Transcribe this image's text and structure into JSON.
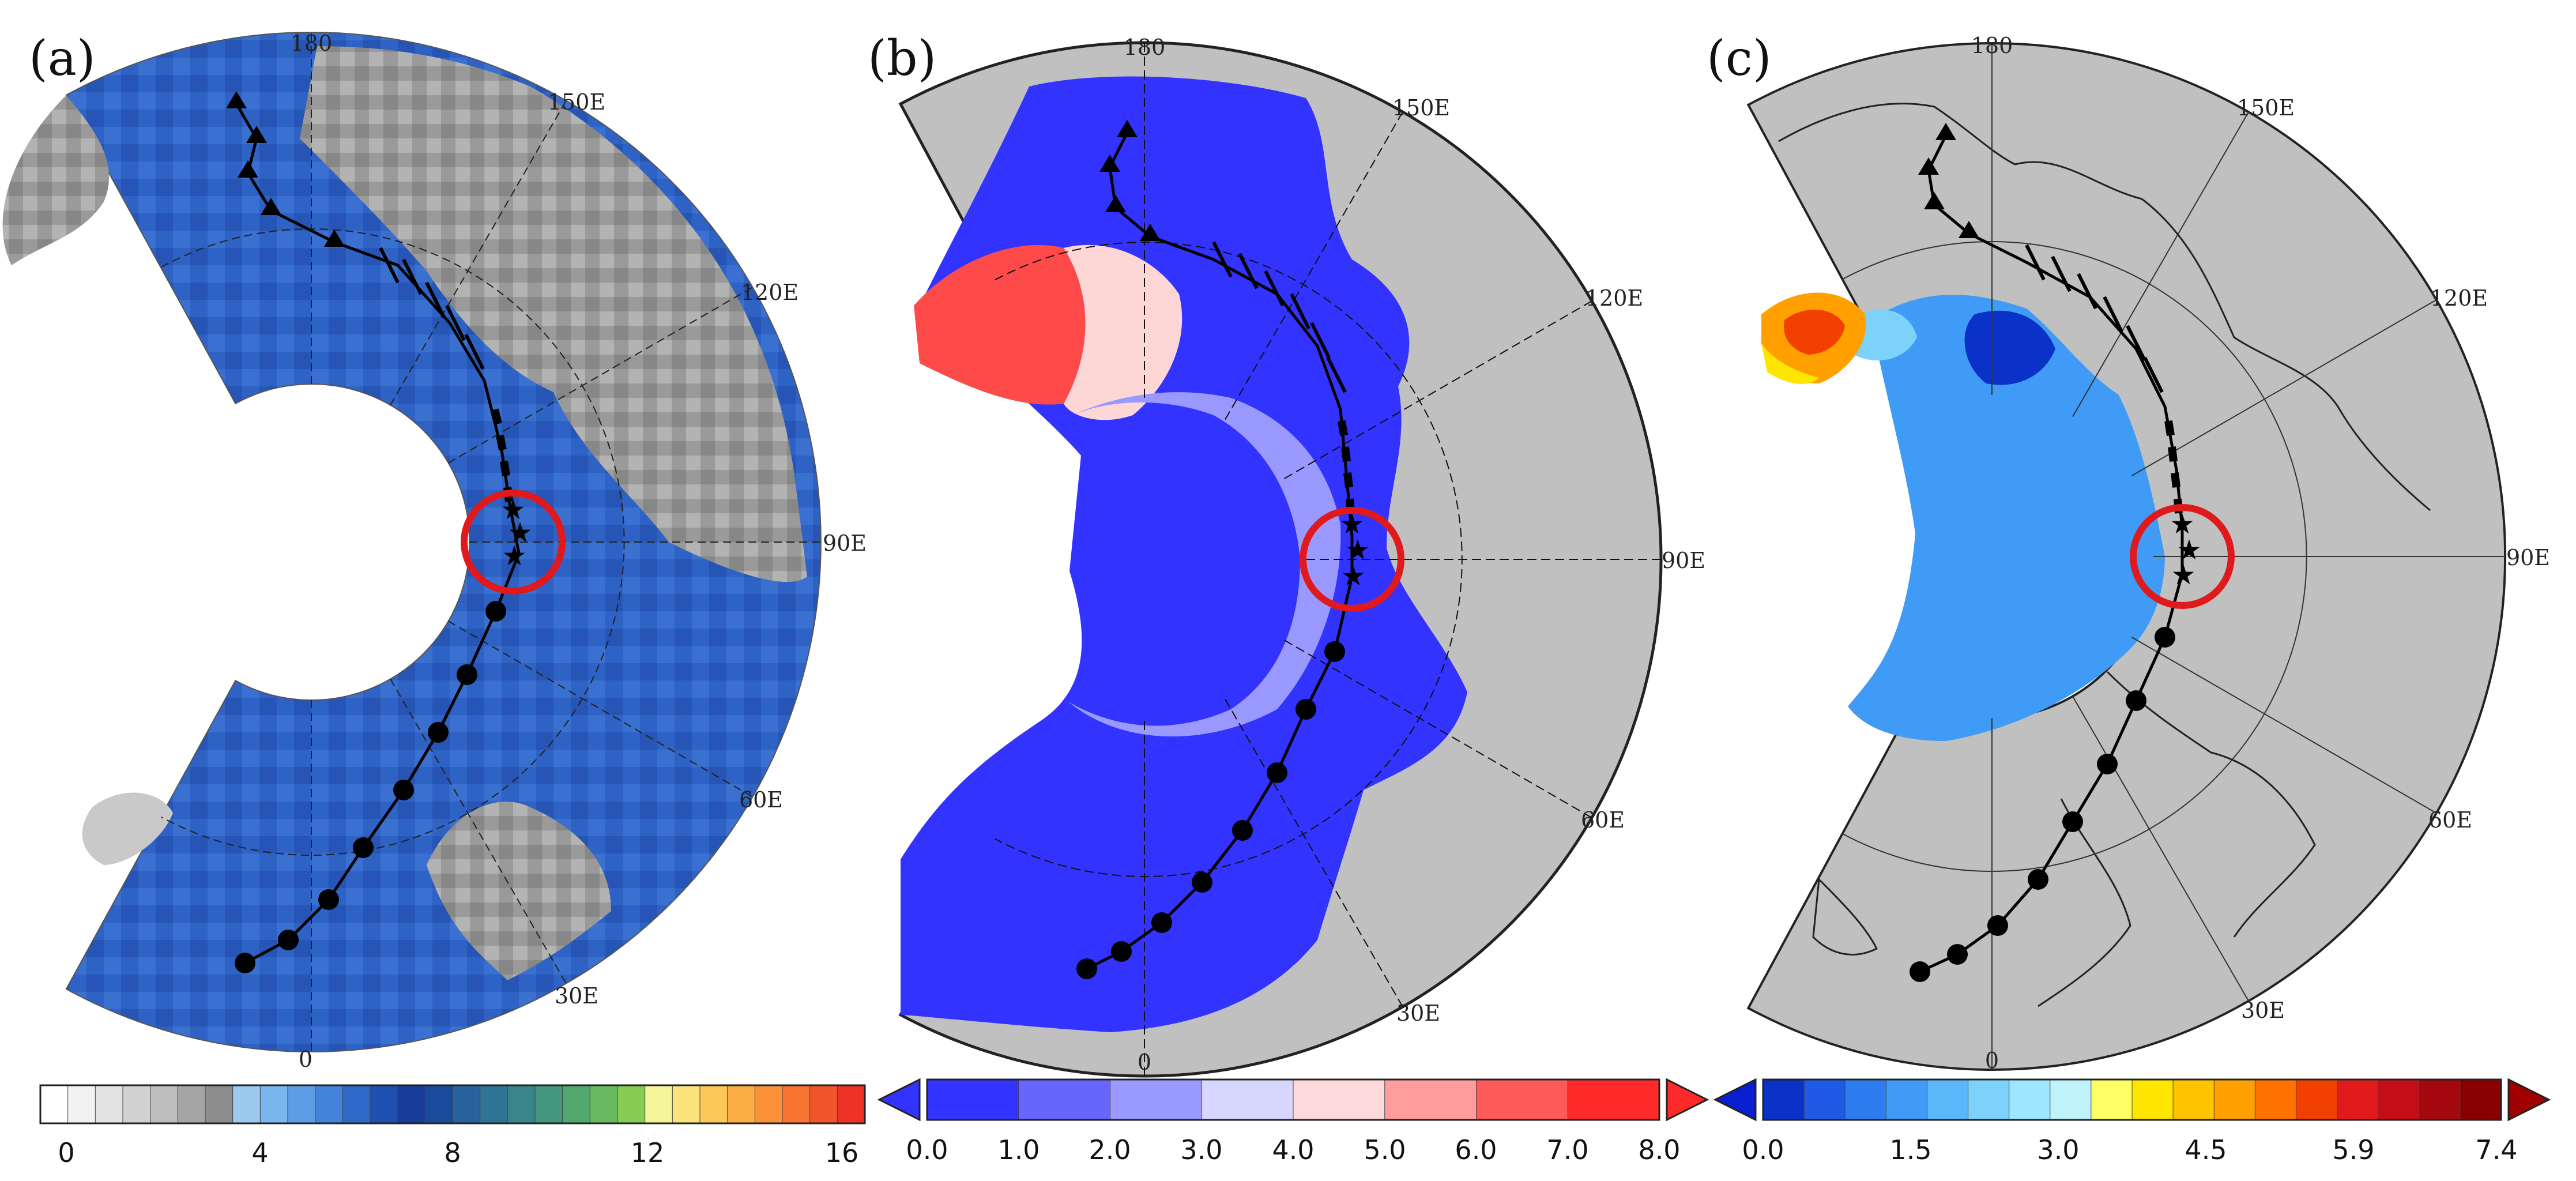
{
  "panels": [
    {
      "label": "(a)",
      "lon_labels": [
        "180",
        "150E",
        "120E",
        "90E",
        "60E",
        "30E",
        "0"
      ],
      "colorbar": {
        "ticks": [
          "0",
          "4",
          "8",
          "12",
          "16"
        ],
        "colors": [
          "#ffffff",
          "#f2f2f2",
          "#e3e3e3",
          "#d2d2d2",
          "#bdbdbd",
          "#a5a5a5",
          "#8d8d8d",
          "#9cc9ef",
          "#7ab7f0",
          "#5b9ee6",
          "#4184da",
          "#2e69c8",
          "#1f4fb0",
          "#173d98",
          "#1a4a9c",
          "#27619e",
          "#2f7494",
          "#38858a",
          "#43977e",
          "#52a86f",
          "#69ba5e",
          "#86cb52",
          "#f5f59a",
          "#fce37a",
          "#fcc85a",
          "#fcae45",
          "#fb923a",
          "#f77431",
          "#f2552b",
          "#ee3226"
        ]
      }
    },
    {
      "label": "(b)",
      "lon_labels": [
        "180",
        "150E",
        "120E",
        "90E",
        "60E",
        "30E",
        "0"
      ],
      "colorbar": {
        "ticks": [
          "0.0",
          "1.0",
          "2.0",
          "3.0",
          "4.0",
          "5.0",
          "6.0",
          "7.0",
          "8.0"
        ],
        "colors": [
          "#3333ff",
          "#6666ff",
          "#9999ff",
          "#d6d6ff",
          "#ffdada",
          "#ff9c9c",
          "#ff5a5a",
          "#ff2a2a"
        ],
        "under_color": "#3333ff",
        "over_color": "#ff2a2a"
      }
    },
    {
      "label": "(c)",
      "lon_labels": [
        "180",
        "150E",
        "120E",
        "90E",
        "60E",
        "30E",
        "0"
      ],
      "colorbar": {
        "ticks": [
          "0.0",
          "1.5",
          "3.0",
          "4.5",
          "5.9",
          "7.4"
        ],
        "colors": [
          "#0a32c8",
          "#1e5ae6",
          "#2e7df0",
          "#3f9bf5",
          "#5ab8fa",
          "#7dd2fc",
          "#9ee6fd",
          "#bff3fc",
          "#ffff66",
          "#ffe600",
          "#ffc400",
          "#ff9f00",
          "#ff7200",
          "#f24000",
          "#e31a1c",
          "#c50d18",
          "#a5070f",
          "#8b0000"
        ],
        "under_color": "#0a1ed2",
        "over_color": "#a00000"
      }
    }
  ],
  "colors": {
    "track": "#000000",
    "highlight_circle": "#e0191c",
    "land_panel_a": "#9a9a9a",
    "ice_panel_a": "#2e62c4",
    "land_mask": "#c0c0c0",
    "field_low": "#3333ff"
  }
}
